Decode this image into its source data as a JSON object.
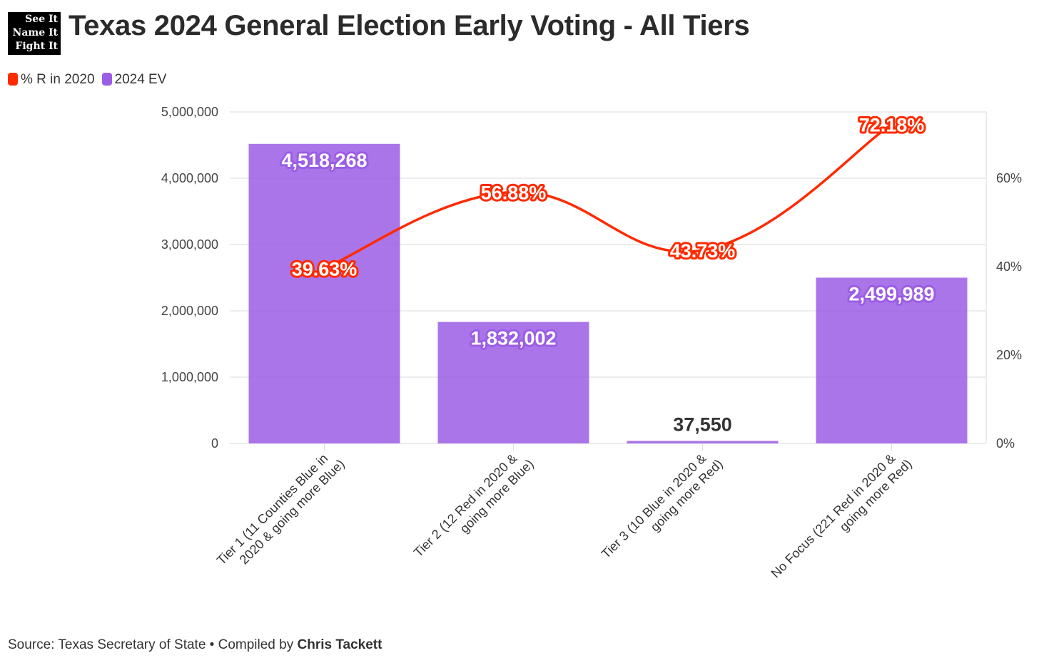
{
  "logo": [
    "See It",
    "Name It",
    "Fight It"
  ],
  "source": {
    "prefix": "Source: Texas Secretary of State • Compiled by ",
    "author": "Chris Tackett"
  },
  "chart_data": {
    "type": "bar+line",
    "title": "Texas 2024 General Election Early Voting - All Tiers",
    "categories": [
      [
        "Tier 1 (11 Counties Blue in",
        "2020 & going more Blue)"
      ],
      [
        "Tier 2 (12 Red in 2020 &",
        "going more Blue)"
      ],
      [
        "Tier 3 (10 Blue in 2020 &",
        "going more Red)"
      ],
      [
        "No Focus (221 Red in 2020 &",
        "going more Red)"
      ]
    ],
    "series": [
      {
        "name": "2024 EV",
        "type": "bar",
        "axis": "left",
        "color": "#9b5de5",
        "values": [
          4518268,
          1832002,
          37550,
          2499989
        ],
        "labels": [
          "4,518,268",
          "1,832,002",
          "37,550",
          "2,499,989"
        ]
      },
      {
        "name": "% R in 2020",
        "type": "line",
        "axis": "right",
        "color": "#ff2a00",
        "values": [
          39.63,
          56.88,
          43.73,
          72.18
        ],
        "labels": [
          "39.63%",
          "56.88%",
          "43.73%",
          "72.18%"
        ]
      }
    ],
    "left_axis": {
      "range": [
        0,
        5000000
      ],
      "ticks": [
        "0",
        "1,000,000",
        "2,000,000",
        "3,000,000",
        "4,000,000",
        "5,000,000"
      ],
      "tick_values": [
        0,
        1000000,
        2000000,
        3000000,
        4000000,
        5000000
      ]
    },
    "right_axis": {
      "range": [
        0,
        75
      ],
      "ticks": [
        "0%",
        "20%",
        "40%",
        "60%"
      ],
      "tick_values": [
        0,
        20,
        40,
        60
      ]
    },
    "legend": [
      "% R in 2020",
      "2024 EV"
    ],
    "legend_position": "top-left",
    "grid": true
  }
}
